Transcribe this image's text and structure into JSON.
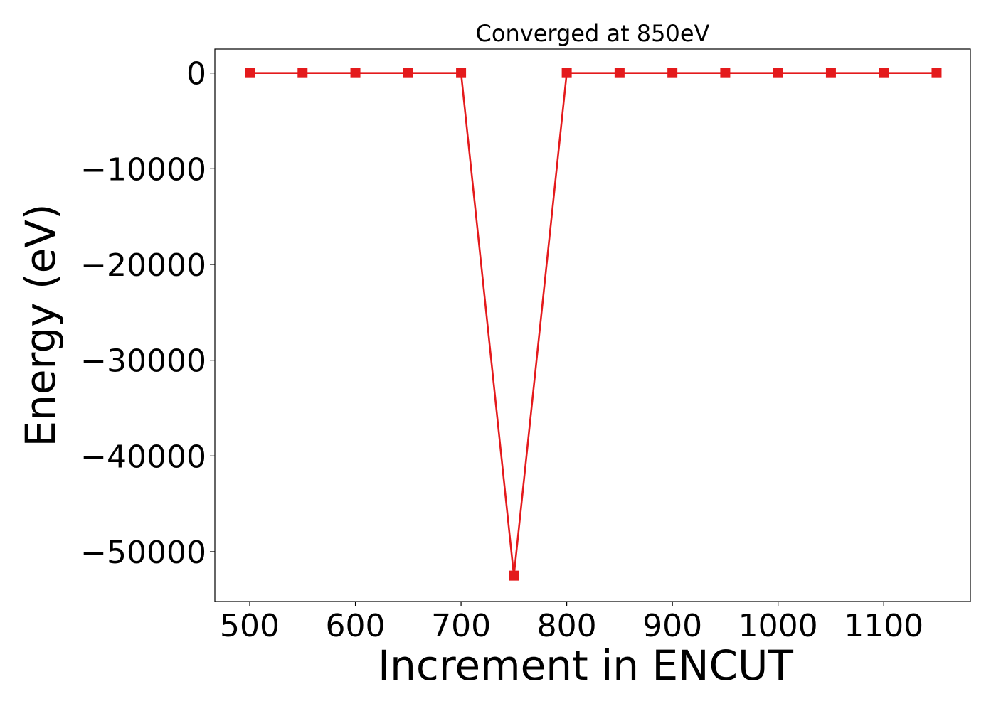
{
  "chart_data": {
    "type": "line",
    "title": "Converged at 850eV",
    "xlabel": "Increment in ENCUT",
    "ylabel": "Energy (eV)",
    "xlim": [
      467,
      1182
    ],
    "ylim": [
      -55200,
      2500
    ],
    "xticks": [
      500,
      600,
      700,
      800,
      900,
      1000,
      1100
    ],
    "yticks": [
      0,
      -10000,
      -20000,
      -30000,
      -40000,
      -50000
    ],
    "ytick_labels": [
      "0",
      "−10000",
      "−20000",
      "−30000",
      "−40000",
      "−50000"
    ],
    "grid": false,
    "series": [
      {
        "color": "#e41a1c",
        "marker": "square",
        "x": [
          500,
          550,
          600,
          650,
          700,
          750,
          800,
          850,
          900,
          950,
          1000,
          1050,
          1100,
          1150
        ],
        "y": [
          0,
          0,
          0,
          0,
          0,
          -52500,
          0,
          0,
          0,
          0,
          0,
          0,
          0,
          0
        ]
      }
    ]
  }
}
